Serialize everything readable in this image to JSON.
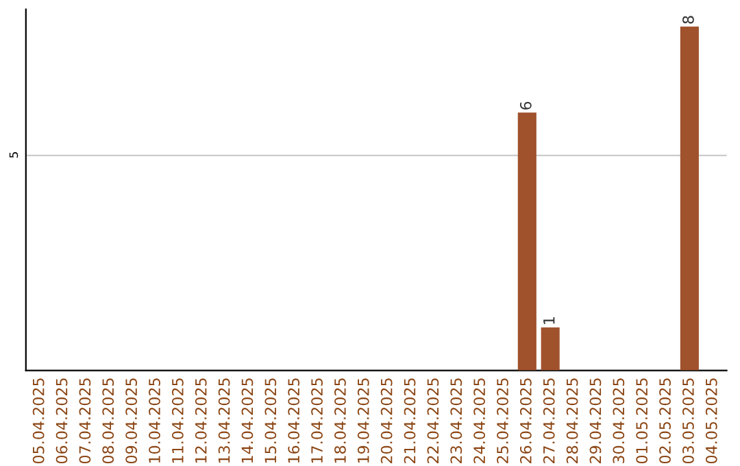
{
  "chart_data": {
    "type": "bar",
    "categories": [
      "05.04.2025",
      "06.04.2025",
      "07.04.2025",
      "08.04.2025",
      "09.04.2025",
      "10.04.2025",
      "11.04.2025",
      "12.04.2025",
      "13.04.2025",
      "14.04.2025",
      "15.04.2025",
      "16.04.2025",
      "17.04.2025",
      "18.04.2025",
      "19.04.2025",
      "20.04.2025",
      "21.04.2025",
      "22.04.2025",
      "23.04.2025",
      "24.04.2025",
      "25.04.2025",
      "26.04.2025",
      "27.04.2025",
      "28.04.2025",
      "29.04.2025",
      "30.04.2025",
      "01.05.2025",
      "02.05.2025",
      "03.05.2025",
      "04.05.2025"
    ],
    "values": [
      null,
      null,
      null,
      null,
      null,
      null,
      null,
      null,
      null,
      null,
      null,
      null,
      null,
      null,
      null,
      null,
      null,
      null,
      null,
      null,
      null,
      6,
      1,
      null,
      null,
      null,
      null,
      null,
      8,
      null
    ],
    "data_labels": true,
    "color": "#a0522d",
    "ylim": [
      0,
      8.4
    ],
    "yticks": [
      5
    ],
    "grid": "y"
  }
}
